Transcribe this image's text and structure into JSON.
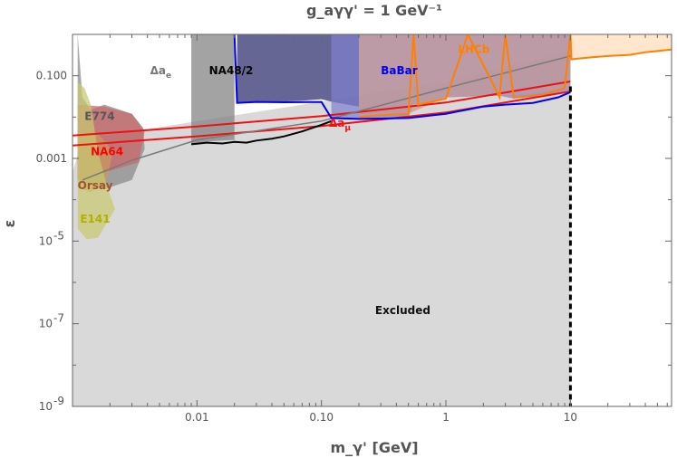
{
  "chart_data": {
    "type": "area",
    "title": "g_aγγ' = 1 GeV⁻¹",
    "xlabel": "m_γ' [GeV]",
    "ylabel": "ε",
    "xscale": "log",
    "yscale": "log",
    "xlim": [
      0.001,
      65
    ],
    "ylim": [
      1e-09,
      1
    ],
    "x_ticks": [
      {
        "value": 0.01,
        "label": "0.01"
      },
      {
        "value": 0.1,
        "label": "0.10"
      },
      {
        "value": 1,
        "label": "1"
      },
      {
        "value": 10,
        "label": "10"
      }
    ],
    "y_ticks": [
      {
        "value": 0.1,
        "label": "0.100"
      },
      {
        "value": 0.001,
        "label": "0.001"
      },
      {
        "value": 1e-05,
        "label": "10",
        "exp": "-5"
      },
      {
        "value": 1e-07,
        "label": "10",
        "exp": "-7"
      },
      {
        "value": 1e-09,
        "label": "10",
        "exp": "-9"
      }
    ],
    "colors": {
      "excluded": "#d9d9d9",
      "na48": "#000000",
      "babar": "#0000ee",
      "lhcb": "#ff8000",
      "amu": "#ee1111",
      "ae": "#666666",
      "e141": "#b8b800",
      "orsay": "#a0522d",
      "na64": "#ff0000"
    },
    "regions": [
      {
        "name": "Excluded",
        "label": "Excluded",
        "fill": "#d9d9d9",
        "boundary": [
          [
            0.001,
            0.00046
          ],
          [
            0.0012,
            0.0029
          ],
          [
            1,
            0.07
          ],
          [
            10,
            0.4
          ],
          [
            10,
            1e-09
          ],
          [
            0.001,
            1e-09
          ]
        ]
      },
      {
        "name": "E774",
        "label": "E774",
        "fill": "#888888",
        "boundary": [
          [
            0.0011,
            1
          ],
          [
            0.0011,
            0.0003
          ],
          [
            0.0018,
            0.00018
          ],
          [
            0.003,
            0.0003
          ],
          [
            0.0038,
            0.0017
          ],
          [
            0.0037,
            0.0055
          ],
          [
            0.003,
            0.012
          ],
          [
            0.0018,
            0.02
          ],
          [
            0.0014,
            0.015
          ],
          [
            0.0012,
            0.03
          ],
          [
            0.0011,
            1
          ]
        ]
      },
      {
        "name": "NA64",
        "label": "NA64",
        "fill": "#cc6666",
        "boundary": [
          [
            0.0011,
            0.0003
          ],
          [
            0.0011,
            0.02
          ],
          [
            0.0018,
            0.018
          ],
          [
            0.003,
            0.012
          ],
          [
            0.0038,
            0.0045
          ],
          [
            0.0034,
            0.0008
          ],
          [
            0.002,
            0.0005
          ],
          [
            0.0011,
            0.0003
          ]
        ]
      },
      {
        "name": "Orsay",
        "label": "Orsay",
        "fill": "#c99a60",
        "boundary": [
          [
            0.0011,
            0.0002
          ],
          [
            0.0011,
            0.003
          ],
          [
            0.0016,
            0.004
          ],
          [
            0.0021,
            0.0015
          ],
          [
            0.0019,
            0.0003
          ],
          [
            0.0014,
            0.00015
          ],
          [
            0.0011,
            0.0002
          ]
        ]
      },
      {
        "name": "E141",
        "label": "E141",
        "fill": "#c8c870",
        "boundary": [
          [
            0.0011,
            2e-05
          ],
          [
            0.0011,
            0.07
          ],
          [
            0.00125,
            0.05
          ],
          [
            0.0014,
            0.02
          ],
          [
            0.0016,
            0.0015
          ],
          [
            0.0019,
            0.0002
          ],
          [
            0.0022,
            6e-05
          ],
          [
            0.0016,
            1.2e-05
          ],
          [
            0.0013,
            1.1e-05
          ],
          [
            0.0011,
            2e-05
          ]
        ]
      },
      {
        "name": "Δa_e",
        "label": "Δa",
        "sub": "e",
        "fill": "#808080",
        "boundary": [
          [
            0.009,
            1
          ],
          [
            0.009,
            0.0022
          ],
          [
            0.013,
            0.0026
          ],
          [
            0.02,
            0.0028
          ],
          [
            0.02,
            1
          ]
        ]
      },
      {
        "name": "NA48/2",
        "label": "NA48/2",
        "fill": "#2b2b6b",
        "boundary": [
          [
            0.021,
            1
          ],
          [
            0.021,
            0.022
          ],
          [
            0.04,
            0.023
          ],
          [
            0.07,
            0.025
          ],
          [
            0.1,
            0.027
          ],
          [
            0.125,
            0.023
          ],
          [
            0.2,
            0.018
          ],
          [
            0.2,
            1
          ]
        ]
      },
      {
        "name": "BaBar",
        "label": "BaBar",
        "fill": "#8080d0",
        "boundary": [
          [
            0.12,
            1
          ],
          [
            0.12,
            0.009
          ],
          [
            0.2,
            0.009
          ],
          [
            0.5,
            0.01
          ],
          [
            0.55,
            0.02
          ],
          [
            1,
            0.03
          ],
          [
            2.7,
            0.033
          ],
          [
            3.5,
            0.028
          ],
          [
            6,
            0.032
          ],
          [
            10,
            0.045
          ],
          [
            10,
            1
          ]
        ]
      },
      {
        "name": "BaBar-orange-overlap",
        "label": "",
        "fill": "#c89890",
        "boundary": [
          [
            0.2,
            1
          ],
          [
            0.2,
            0.01
          ],
          [
            0.5,
            0.012
          ],
          [
            1,
            0.03
          ],
          [
            2.7,
            0.033
          ],
          [
            6,
            0.04
          ],
          [
            10,
            0.05
          ],
          [
            10,
            1
          ]
        ]
      },
      {
        "name": "LHCb",
        "label": "LHCb",
        "fill": "#ffdcb8",
        "boundary": [
          [
            10,
            1
          ],
          [
            10,
            0.25
          ],
          [
            15,
            0.28
          ],
          [
            20,
            0.3
          ],
          [
            30,
            0.32
          ],
          [
            40,
            0.38
          ],
          [
            65,
            0.42
          ],
          [
            65,
            1
          ]
        ]
      }
    ],
    "series": [
      {
        "name": "Δa_μ",
        "label": "Δa",
        "sub": "μ",
        "color": "#ee1111",
        "style": "double",
        "x": [
          0.001,
          0.01,
          0.1,
          1,
          10
        ],
        "y": [
          0.0027,
          0.0045,
          0.008,
          0.017,
          0.055
        ],
        "offset": 0.12
      },
      {
        "name": "Δa_e boundary",
        "color": "#7a7a7a",
        "style": "thin",
        "x": [
          0.0012,
          0.003,
          0.01,
          0.1,
          1,
          10
        ],
        "y": [
          0.0003,
          0.0009,
          0.0028,
          0.008,
          0.05,
          0.3
        ]
      },
      {
        "name": "NA48/2",
        "color": "#000000",
        "style": "jagged",
        "x": [
          0.009,
          0.012,
          0.016,
          0.02,
          0.025,
          0.03,
          0.04,
          0.05,
          0.07,
          0.1,
          0.12
        ],
        "y": [
          0.0022,
          0.0024,
          0.0023,
          0.0025,
          0.0024,
          0.0027,
          0.003,
          0.0034,
          0.0045,
          0.0065,
          0.008
        ]
      },
      {
        "name": "BaBar",
        "color": "#0000ee",
        "style": "jagged",
        "x": [
          0.02,
          0.021,
          0.03,
          0.05,
          0.1,
          0.12,
          0.2,
          0.3,
          0.5,
          1,
          2,
          3,
          5,
          8,
          10
        ],
        "y": [
          1,
          0.022,
          0.0232,
          0.0228,
          0.0232,
          0.0095,
          0.009,
          0.0092,
          0.0095,
          0.012,
          0.018,
          0.02,
          0.022,
          0.03,
          0.04
        ]
      },
      {
        "name": "LHCb",
        "color": "#ff8000",
        "style": "jagged",
        "x": [
          0.2,
          0.3,
          0.5,
          0.55,
          0.6,
          1,
          1.5,
          2.7,
          3,
          3.5,
          6,
          9,
          10,
          10.2,
          15,
          20,
          30,
          40,
          65
        ],
        "y": [
          0.01,
          0.011,
          0.012,
          1,
          0.02,
          0.028,
          1,
          0.03,
          1,
          0.03,
          0.035,
          0.05,
          1,
          0.25,
          0.28,
          0.3,
          0.32,
          0.37,
          0.43
        ]
      },
      {
        "name": "boundary-10GeV",
        "color": "#000000",
        "style": "dashed",
        "x": [
          10,
          10
        ],
        "y": [
          0.055,
          1e-09
        ]
      }
    ]
  }
}
